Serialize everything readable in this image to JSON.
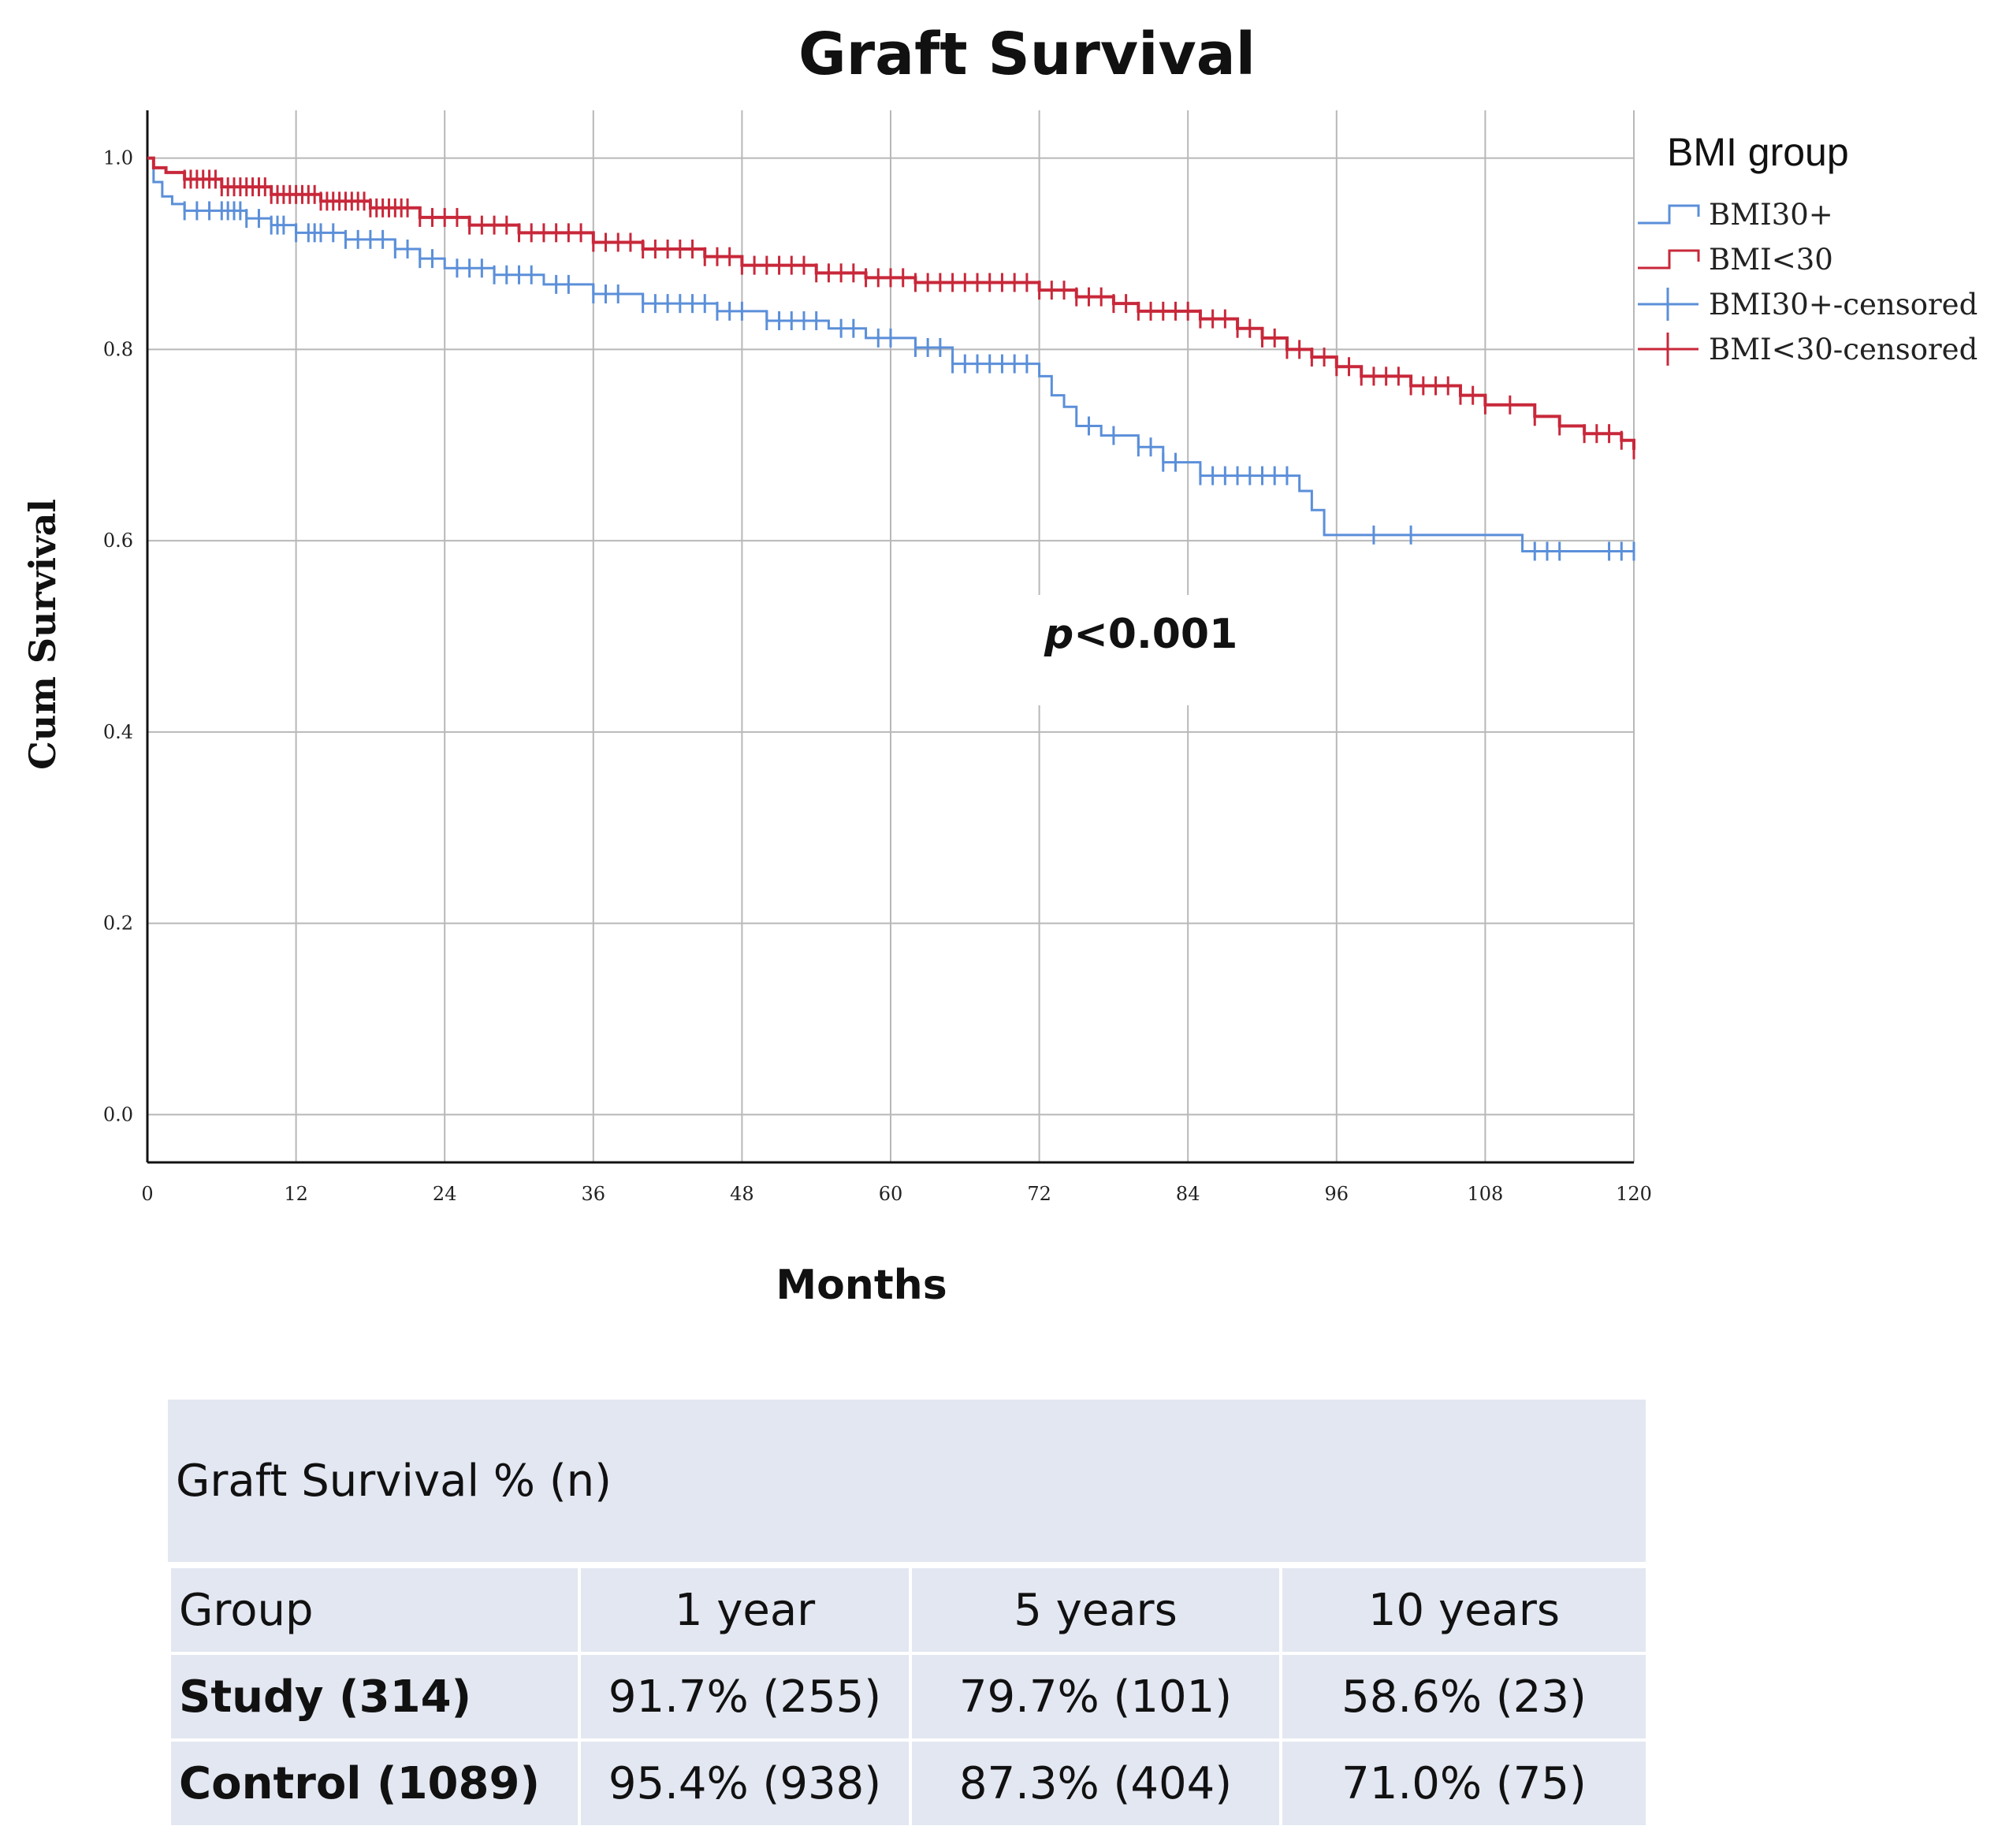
{
  "chart_data": {
    "type": "line",
    "subtype": "kaplan-meier",
    "title": "Graft Survival",
    "xlabel": "Months",
    "ylabel": "Cum Survival",
    "xlim": [
      0,
      120
    ],
    "ylim": [
      -0.05,
      1.05
    ],
    "xticks": [
      "0",
      "12",
      "24",
      "36",
      "48",
      "60",
      "72",
      "84",
      "96",
      "108",
      "120"
    ],
    "yticks": [
      "0.0",
      "0.2",
      "0.4",
      "0.6",
      "0.8",
      "1.0"
    ],
    "grid": true,
    "legend": {
      "title": "BMI group",
      "position": "right",
      "items": [
        "BMI30+",
        "BMI<30",
        "BMI30+-censored",
        "BMI<30-censored"
      ]
    },
    "annotation": {
      "prefix": "p",
      "text": "<0.001"
    },
    "series": [
      {
        "name": "BMI30+",
        "color": "#5b8fd9",
        "steps": [
          [
            0,
            1.0
          ],
          [
            0.5,
            0.975
          ],
          [
            1.2,
            0.96
          ],
          [
            2,
            0.952
          ],
          [
            3,
            0.945
          ],
          [
            8,
            0.937
          ],
          [
            10,
            0.93
          ],
          [
            12,
            0.922
          ],
          [
            16,
            0.915
          ],
          [
            20,
            0.905
          ],
          [
            22,
            0.895
          ],
          [
            24,
            0.885
          ],
          [
            28,
            0.878
          ],
          [
            32,
            0.868
          ],
          [
            36,
            0.858
          ],
          [
            40,
            0.848
          ],
          [
            46,
            0.84
          ],
          [
            50,
            0.83
          ],
          [
            55,
            0.822
          ],
          [
            58,
            0.812
          ],
          [
            62,
            0.802
          ],
          [
            65,
            0.785
          ],
          [
            72,
            0.772
          ],
          [
            73,
            0.752
          ],
          [
            74,
            0.74
          ],
          [
            75,
            0.72
          ],
          [
            77,
            0.71
          ],
          [
            80,
            0.698
          ],
          [
            82,
            0.682
          ],
          [
            85,
            0.668
          ],
          [
            93,
            0.652
          ],
          [
            94,
            0.632
          ],
          [
            95,
            0.606
          ],
          [
            111,
            0.589
          ],
          [
            120,
            0.589
          ]
        ],
        "censored": [
          3,
          4,
          5,
          6,
          6.5,
          7,
          7.5,
          8,
          9,
          10,
          10.5,
          11,
          12,
          13,
          13.5,
          14,
          15,
          16,
          17,
          18,
          19,
          20,
          21,
          22,
          23,
          25,
          26,
          27,
          28,
          29,
          30,
          31,
          33,
          34,
          36,
          37,
          38,
          40,
          41,
          42,
          43,
          44,
          45,
          46,
          47,
          48,
          50,
          51,
          52,
          53,
          54,
          56,
          57,
          59,
          60,
          62,
          63,
          64,
          65,
          66,
          67,
          68,
          69,
          70,
          71,
          76,
          78,
          80,
          81,
          82,
          83,
          85,
          86,
          87,
          88,
          89,
          90,
          91,
          92,
          99,
          102,
          112,
          113,
          114,
          118,
          119,
          120
        ]
      },
      {
        "name": "BMI<30",
        "color": "#c8283a",
        "steps": [
          [
            0,
            1.0
          ],
          [
            0.5,
            0.99
          ],
          [
            1.5,
            0.985
          ],
          [
            3,
            0.978
          ],
          [
            6,
            0.97
          ],
          [
            10,
            0.962
          ],
          [
            14,
            0.955
          ],
          [
            18,
            0.948
          ],
          [
            22,
            0.938
          ],
          [
            26,
            0.93
          ],
          [
            30,
            0.922
          ],
          [
            36,
            0.912
          ],
          [
            40,
            0.905
          ],
          [
            45,
            0.897
          ],
          [
            48,
            0.888
          ],
          [
            54,
            0.88
          ],
          [
            58,
            0.875
          ],
          [
            62,
            0.87
          ],
          [
            72,
            0.862
          ],
          [
            75,
            0.855
          ],
          [
            78,
            0.848
          ],
          [
            80,
            0.84
          ],
          [
            85,
            0.832
          ],
          [
            88,
            0.822
          ],
          [
            90,
            0.812
          ],
          [
            92,
            0.8
          ],
          [
            94,
            0.792
          ],
          [
            96,
            0.782
          ],
          [
            98,
            0.772
          ],
          [
            102,
            0.762
          ],
          [
            106,
            0.752
          ],
          [
            108,
            0.742
          ],
          [
            112,
            0.73
          ],
          [
            114,
            0.72
          ],
          [
            116,
            0.712
          ],
          [
            119,
            0.705
          ],
          [
            120,
            0.695
          ]
        ],
        "censored": [
          3,
          3.5,
          4,
          4.5,
          5,
          5.5,
          6,
          6.5,
          7,
          7.5,
          8,
          8.5,
          9,
          9.5,
          10,
          10.5,
          11,
          11.5,
          12,
          12.5,
          13,
          13.5,
          14,
          14.5,
          15,
          15.5,
          16,
          16.5,
          17,
          17.5,
          18,
          18.5,
          19,
          19.5,
          20,
          20.5,
          21,
          22,
          23,
          24,
          25,
          26,
          27,
          28,
          29,
          30,
          31,
          32,
          33,
          34,
          35,
          36,
          37,
          38,
          39,
          40,
          41,
          42,
          43,
          44,
          45,
          46,
          47,
          48,
          49,
          50,
          51,
          52,
          53,
          54,
          55,
          56,
          57,
          58,
          59,
          60,
          61,
          62,
          63,
          64,
          65,
          66,
          67,
          68,
          69,
          70,
          71,
          72,
          73,
          74,
          75,
          76,
          77,
          78,
          79,
          80,
          81,
          82,
          83,
          84,
          85,
          86,
          87,
          88,
          89,
          90,
          91,
          92,
          93,
          94,
          95,
          96,
          97,
          98,
          99,
          100,
          101,
          102,
          103,
          104,
          105,
          106,
          107,
          108,
          110,
          112,
          114,
          116,
          117,
          118,
          119,
          120
        ]
      }
    ]
  },
  "table": {
    "caption": "Graft Survival % (n)",
    "headers": [
      "Group",
      "1 year",
      "5 years",
      "10 years"
    ],
    "rows": [
      [
        "Study (314)",
        "91.7% (255)",
        "79.7% (101)",
        "58.6% (23)"
      ],
      [
        "Control (1089)",
        "95.4% (938)",
        "87.3% (404)",
        "71.0% (75)"
      ]
    ]
  }
}
